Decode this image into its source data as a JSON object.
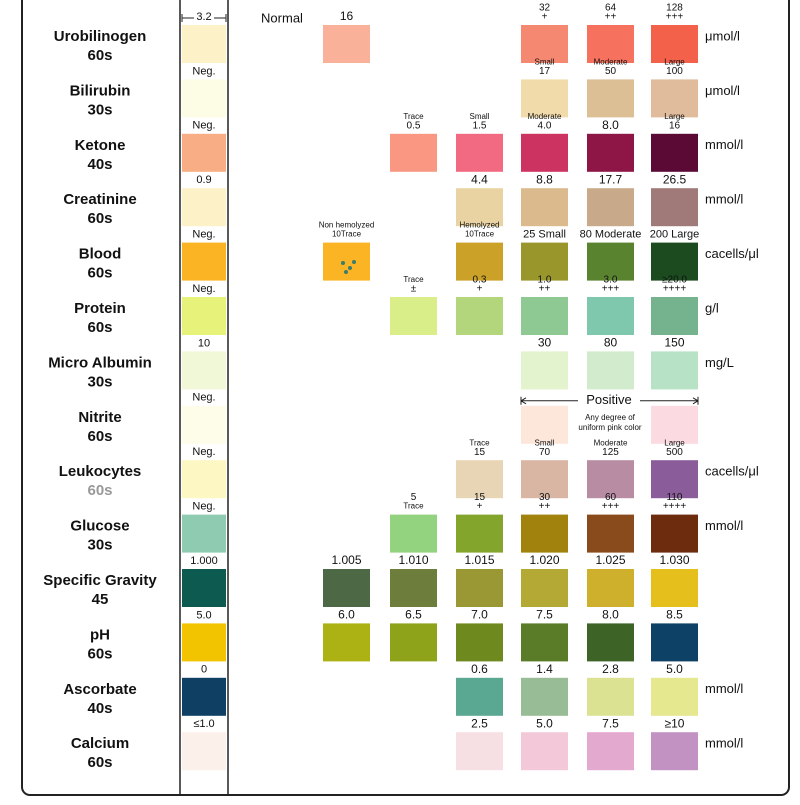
{
  "header": {
    "normal": "Normal"
  },
  "rows": [
    {
      "name": "Urobilinogen",
      "time": "60s",
      "strip_label": "3.2",
      "strip_color": "#fdf1c8",
      "unit": "μmol/l",
      "cells": [
        {
          "labels": [
            "16"
          ],
          "color": "#f9b19a"
        },
        null,
        null,
        {
          "labels": [
            "32",
            "+"
          ],
          "color": "#f58870"
        },
        {
          "labels": [
            "64",
            "++"
          ],
          "color": "#f7725e"
        },
        {
          "labels": [
            "128",
            "+++"
          ],
          "color": "#f4614b"
        }
      ]
    },
    {
      "name": "Bilirubin",
      "time": "30s",
      "strip_label": "Neg.",
      "strip_color": "#fdfde6",
      "unit": "μmol/l",
      "cells": [
        null,
        null,
        null,
        {
          "labels": [
            "Small",
            "17"
          ],
          "color": "#f2dbab"
        },
        {
          "labels": [
            "Moderate",
            "50"
          ],
          "color": "#dcbf95"
        },
        {
          "labels": [
            "Large",
            "100"
          ],
          "color": "#e0bc9c"
        }
      ]
    },
    {
      "name": "Ketone",
      "time": "40s",
      "strip_label": "Neg.",
      "strip_color": "#f9ad84",
      "unit": "mmol/l",
      "cells": [
        null,
        {
          "labels": [
            "Trace",
            "0.5"
          ],
          "color": "#f99783"
        },
        {
          "labels": [
            "Small",
            "1.5"
          ],
          "color": "#f26a82"
        },
        {
          "labels": [
            "Moderate",
            "4.0"
          ],
          "color": "#cc3360"
        },
        {
          "labels": [
            "8.0"
          ],
          "color": "#8e1647"
        },
        {
          "labels": [
            "Large",
            "16"
          ],
          "color": "#5a0a35"
        }
      ]
    },
    {
      "name": "Creatinine",
      "time": "60s",
      "strip_label": "0.9",
      "strip_color": "#fdf1c8",
      "unit": "mmol/l",
      "cells": [
        null,
        null,
        {
          "labels": [
            "4.4"
          ],
          "color": "#e9d3a3"
        },
        {
          "labels": [
            "8.8"
          ],
          "color": "#dbbb8e"
        },
        {
          "labels": [
            "17.7"
          ],
          "color": "#c8a98a"
        },
        {
          "labels": [
            "26.5"
          ],
          "color": "#a07a78"
        }
      ]
    },
    {
      "name": "Blood",
      "time": "60s",
      "strip_label": "Neg.",
      "strip_color": "#fbb424",
      "unit": "cacells/μl",
      "cells": [
        {
          "labels": [
            "Non hemolyzed",
            "10Trace"
          ],
          "color": "#fbb424"
        },
        null,
        {
          "labels": [
            "Hemolyzed",
            "10Trace"
          ],
          "color": "#cba127"
        },
        {
          "labels": [
            "25 Small"
          ],
          "color": "#99962b"
        },
        {
          "labels": [
            "80 Moderate"
          ],
          "color": "#5a8330"
        },
        {
          "labels": [
            "200 Large"
          ],
          "color": "#1b4b1e"
        }
      ]
    },
    {
      "name": "Protein",
      "time": "60s",
      "strip_label": "Neg.",
      "strip_color": "#e6f279",
      "unit": "g/l",
      "cells": [
        null,
        {
          "labels": [
            "Trace",
            "±"
          ],
          "color": "#d9ed88"
        },
        {
          "labels": [
            "0.3",
            "+"
          ],
          "color": "#b3d67c"
        },
        {
          "labels": [
            "1.0",
            "++"
          ],
          "color": "#8ec993"
        },
        {
          "labels": [
            "3.0",
            "+++"
          ],
          "color": "#7fc7ad"
        },
        {
          "labels": [
            "≥20.0",
            "++++"
          ],
          "color": "#75b38f"
        }
      ]
    },
    {
      "name": "Micro Albumin",
      "time": "30s",
      "strip_label": "10",
      "strip_color": "#f1f8d8",
      "unit": "mg/L",
      "cells": [
        null,
        null,
        null,
        {
          "labels": [
            "30"
          ],
          "color": "#e2f3cd"
        },
        {
          "labels": [
            "80"
          ],
          "color": "#d1ebcc"
        },
        {
          "labels": [
            "150"
          ],
          "color": "#b7e2c6"
        }
      ]
    },
    {
      "name": "Nitrite",
      "time": "60s",
      "strip_label": "Neg.",
      "strip_color": "#fefde9",
      "annotation": {
        "title": "Positive",
        "text": [
          "Any degree of",
          "uniform pink color"
        ]
      },
      "cells": [
        null,
        null,
        null,
        {
          "color": "#fde6da"
        },
        null,
        {
          "color": "#fbdbe1"
        }
      ]
    },
    {
      "name": "Leukocytes",
      "time": "60s",
      "strip_label": "Neg.",
      "strip_color": "#fdf7c4",
      "unit": "cacells/μl",
      "cells": [
        null,
        null,
        {
          "labels": [
            "Trace",
            "15"
          ],
          "color": "#e8d5b5"
        },
        {
          "labels": [
            "Small",
            "70"
          ],
          "color": "#d8b6a3"
        },
        {
          "labels": [
            "Moderate",
            "125"
          ],
          "color": "#b88ca3"
        },
        {
          "labels": [
            "Large",
            "500"
          ],
          "color": "#8a5d9a"
        }
      ]
    },
    {
      "name": "Glucose",
      "time": "30s",
      "strip_label": "Neg.",
      "strip_color": "#8fcbb0",
      "unit": "mmol/l",
      "cells": [
        null,
        {
          "labels": [
            "5",
            "Trace"
          ],
          "color": "#93d27e"
        },
        {
          "labels": [
            "15",
            "+"
          ],
          "color": "#84a52b"
        },
        {
          "labels": [
            "30",
            "++"
          ],
          "color": "#a0820c"
        },
        {
          "labels": [
            "60",
            "+++"
          ],
          "color": "#894b1b"
        },
        {
          "labels": [
            "110",
            "++++"
          ],
          "color": "#6c2c0d"
        }
      ]
    },
    {
      "name": "Specific Gravity",
      "time": "45",
      "strip_label": "1.000",
      "strip_color": "#0d5a51",
      "cells": [
        {
          "labels": [
            "1.005"
          ],
          "color": "#4c6845"
        },
        {
          "labels": [
            "1.010"
          ],
          "color": "#6c7d3c"
        },
        {
          "labels": [
            "1.015"
          ],
          "color": "#9a9735"
        },
        {
          "labels": [
            "1.020"
          ],
          "color": "#b5a935"
        },
        {
          "labels": [
            "1.025"
          ],
          "color": "#ceb02c"
        },
        {
          "labels": [
            "1.030"
          ],
          "color": "#e5c01c"
        }
      ]
    },
    {
      "name": "pH",
      "time": "60s",
      "strip_label": "5.0",
      "strip_color": "#f2c400",
      "cells": [
        {
          "labels": [
            "6.0"
          ],
          "color": "#adb214"
        },
        {
          "labels": [
            "6.5"
          ],
          "color": "#8ea21a"
        },
        {
          "labels": [
            "7.0"
          ],
          "color": "#6e8a1f"
        },
        {
          "labels": [
            "7.5"
          ],
          "color": "#5a7b27"
        },
        {
          "labels": [
            "8.0"
          ],
          "color": "#3d6326"
        },
        {
          "labels": [
            "8.5"
          ],
          "color": "#0e4166"
        }
      ]
    },
    {
      "name": "Ascorbate",
      "time": "40s",
      "strip_label": "0",
      "strip_color": "#0f3f63",
      "unit": "mmol/l",
      "cells": [
        null,
        null,
        {
          "labels": [
            "0.6"
          ],
          "color": "#5aa891"
        },
        {
          "labels": [
            "1.4"
          ],
          "color": "#98bd96"
        },
        {
          "labels": [
            "2.8"
          ],
          "color": "#dbe392"
        },
        {
          "labels": [
            "5.0"
          ],
          "color": "#e5e88f"
        }
      ]
    },
    {
      "name": "Calcium",
      "time": "60s",
      "strip_label": "≤1.0",
      "strip_color": "#fcf0ea",
      "unit": "mmol/l",
      "cells": [
        null,
        null,
        {
          "labels": [
            "2.5"
          ],
          "color": "#f7e0e3"
        },
        {
          "labels": [
            "5.0"
          ],
          "color": "#f3c9d9"
        },
        {
          "labels": [
            "7.5"
          ],
          "color": "#e4a9cf"
        },
        {
          "labels": [
            "≥10"
          ],
          "color": "#c292c3"
        }
      ]
    }
  ]
}
